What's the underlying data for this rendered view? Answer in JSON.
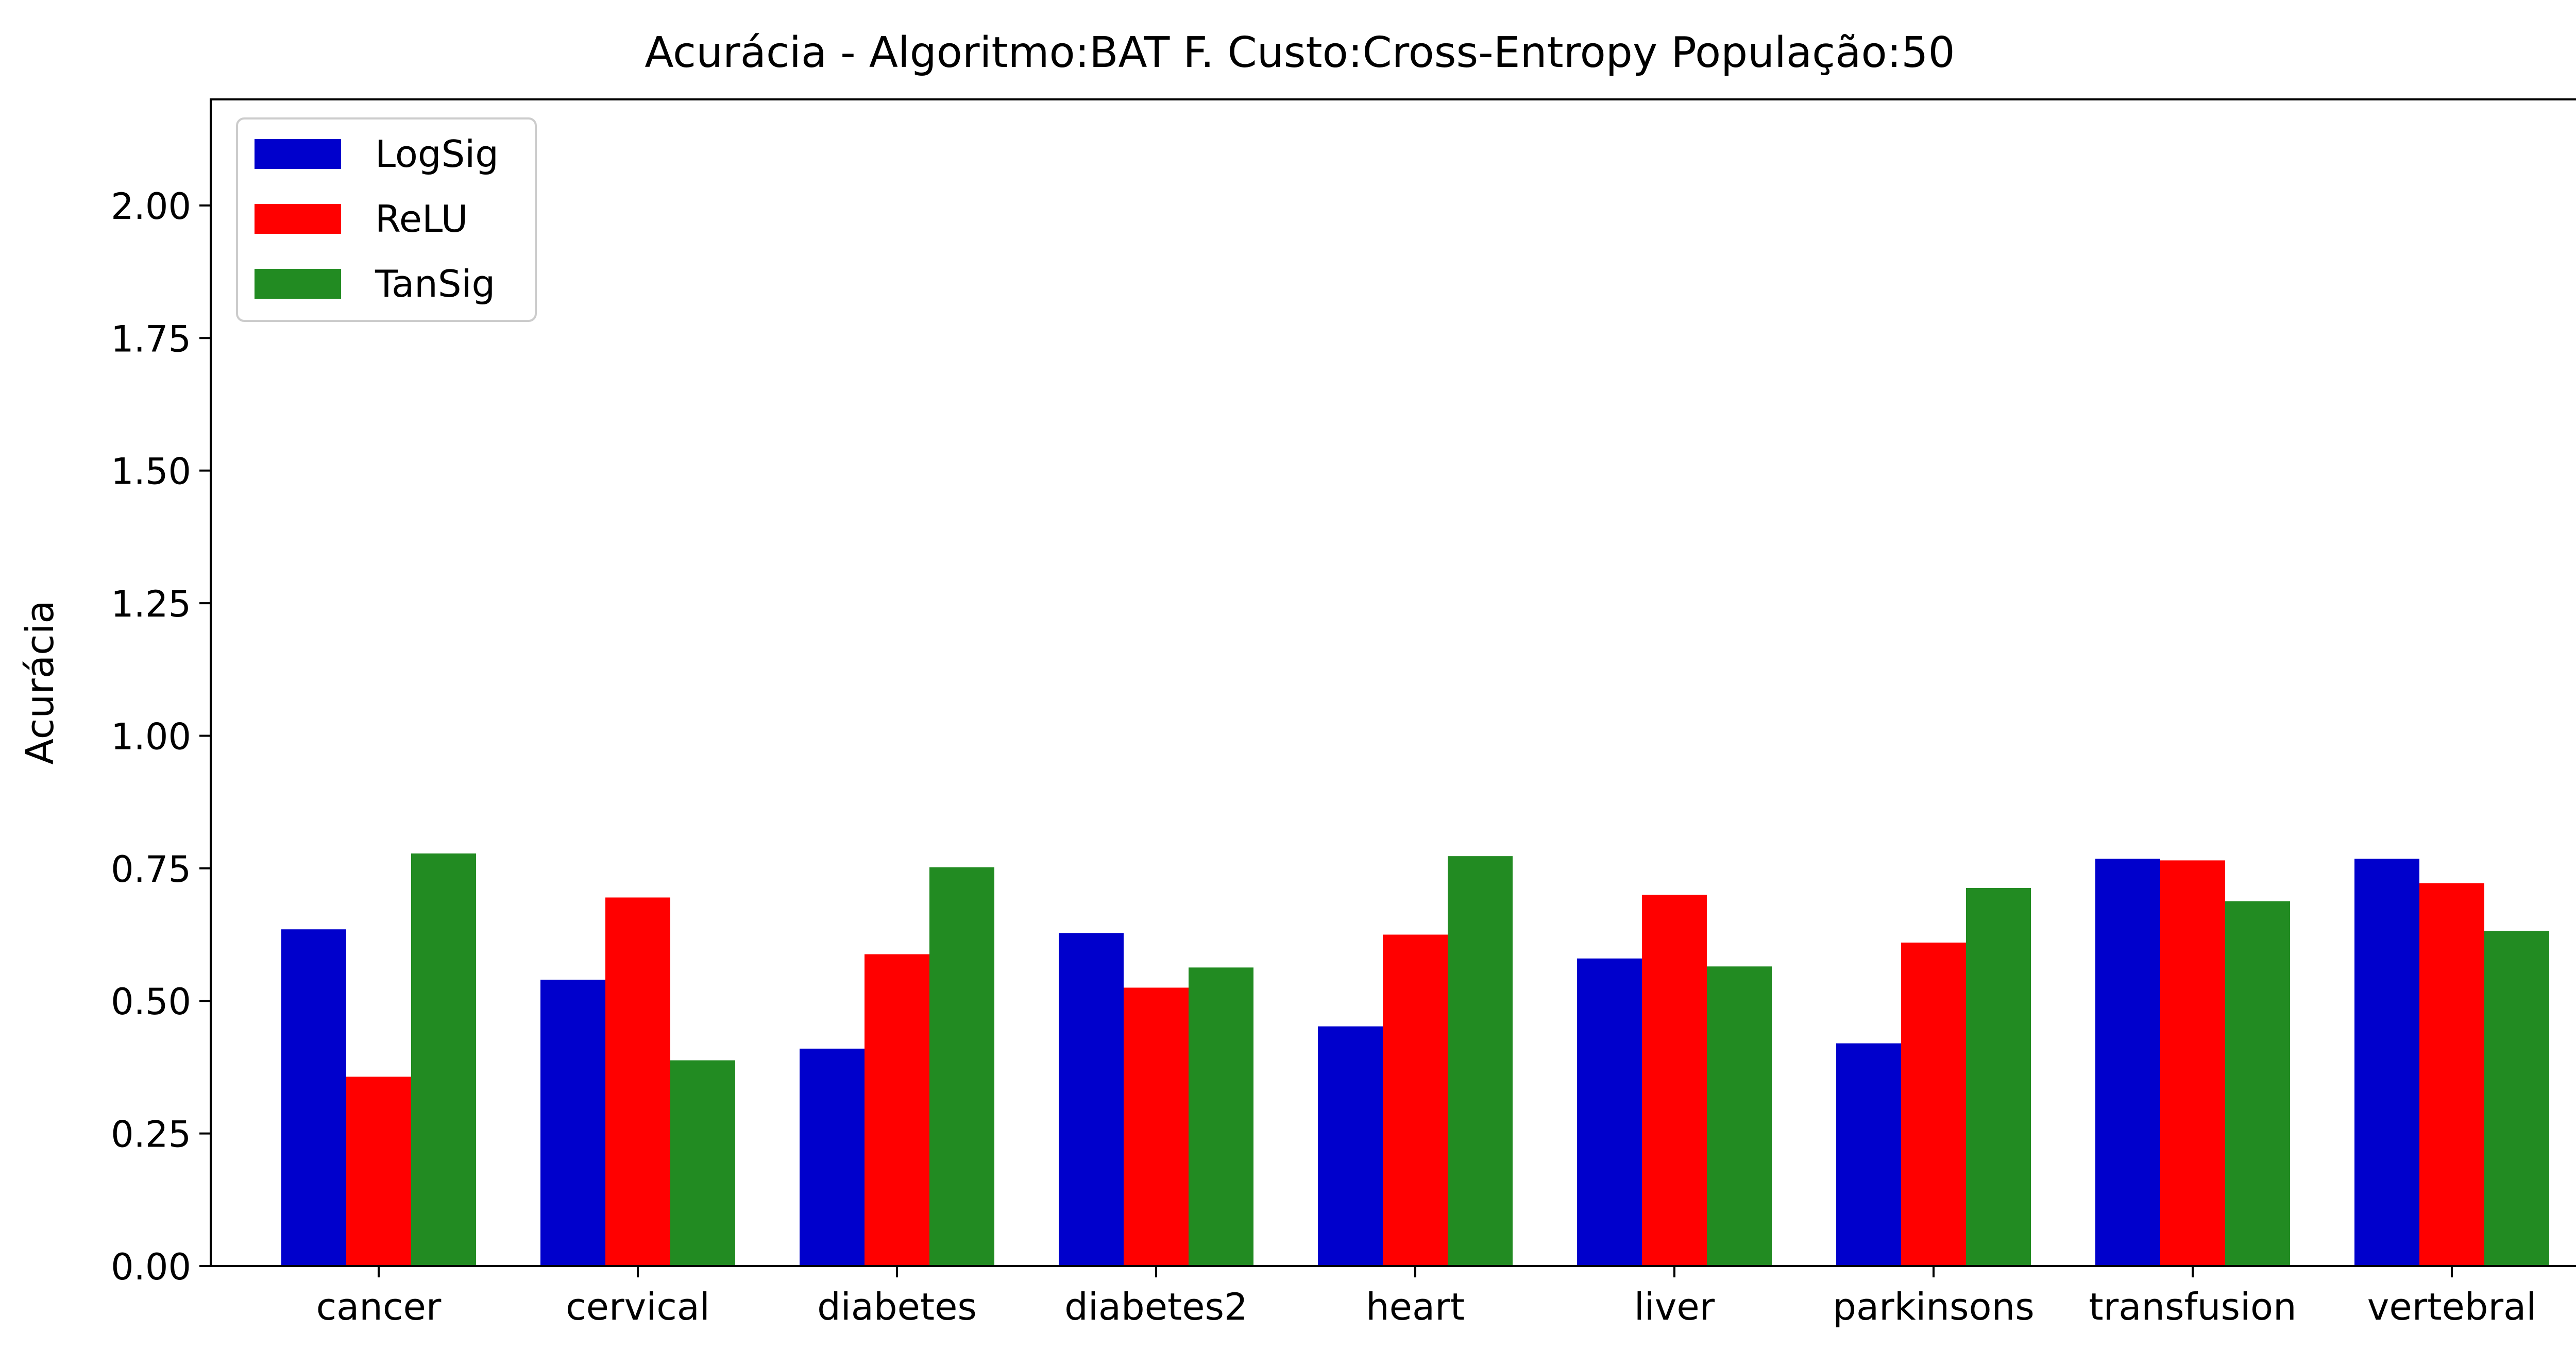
{
  "chart_data": {
    "type": "bar",
    "title": "Acurácia - Algoritmo:BAT F. Custo:Cross-Entropy População:50",
    "xlabel": "",
    "ylabel": "Acurácia",
    "ylim": [
      0,
      2.2
    ],
    "yticks": [
      "0.00",
      "0.25",
      "0.50",
      "0.75",
      "1.00",
      "1.25",
      "1.50",
      "1.75",
      "2.00"
    ],
    "grid": false,
    "legend": "top-left",
    "categories": [
      "cancer",
      "cervical",
      "diabetes",
      "diabetes2",
      "heart",
      "liver",
      "parkinsons",
      "transfusion",
      "vertebral"
    ],
    "series": [
      {
        "name": "LogSig",
        "color": "#0000cc",
        "values": [
          0.635,
          0.54,
          0.41,
          0.628,
          0.452,
          0.58,
          0.42,
          0.768,
          0.768
        ]
      },
      {
        "name": "ReLU",
        "color": "#ff0000",
        "values": [
          0.357,
          0.695,
          0.588,
          0.525,
          0.625,
          0.7,
          0.61,
          0.765,
          0.722
        ]
      },
      {
        "name": "TanSig",
        "color": "#228b22",
        "values": [
          0.778,
          0.388,
          0.752,
          0.563,
          0.773,
          0.565,
          0.713,
          0.688,
          0.632
        ]
      }
    ]
  }
}
